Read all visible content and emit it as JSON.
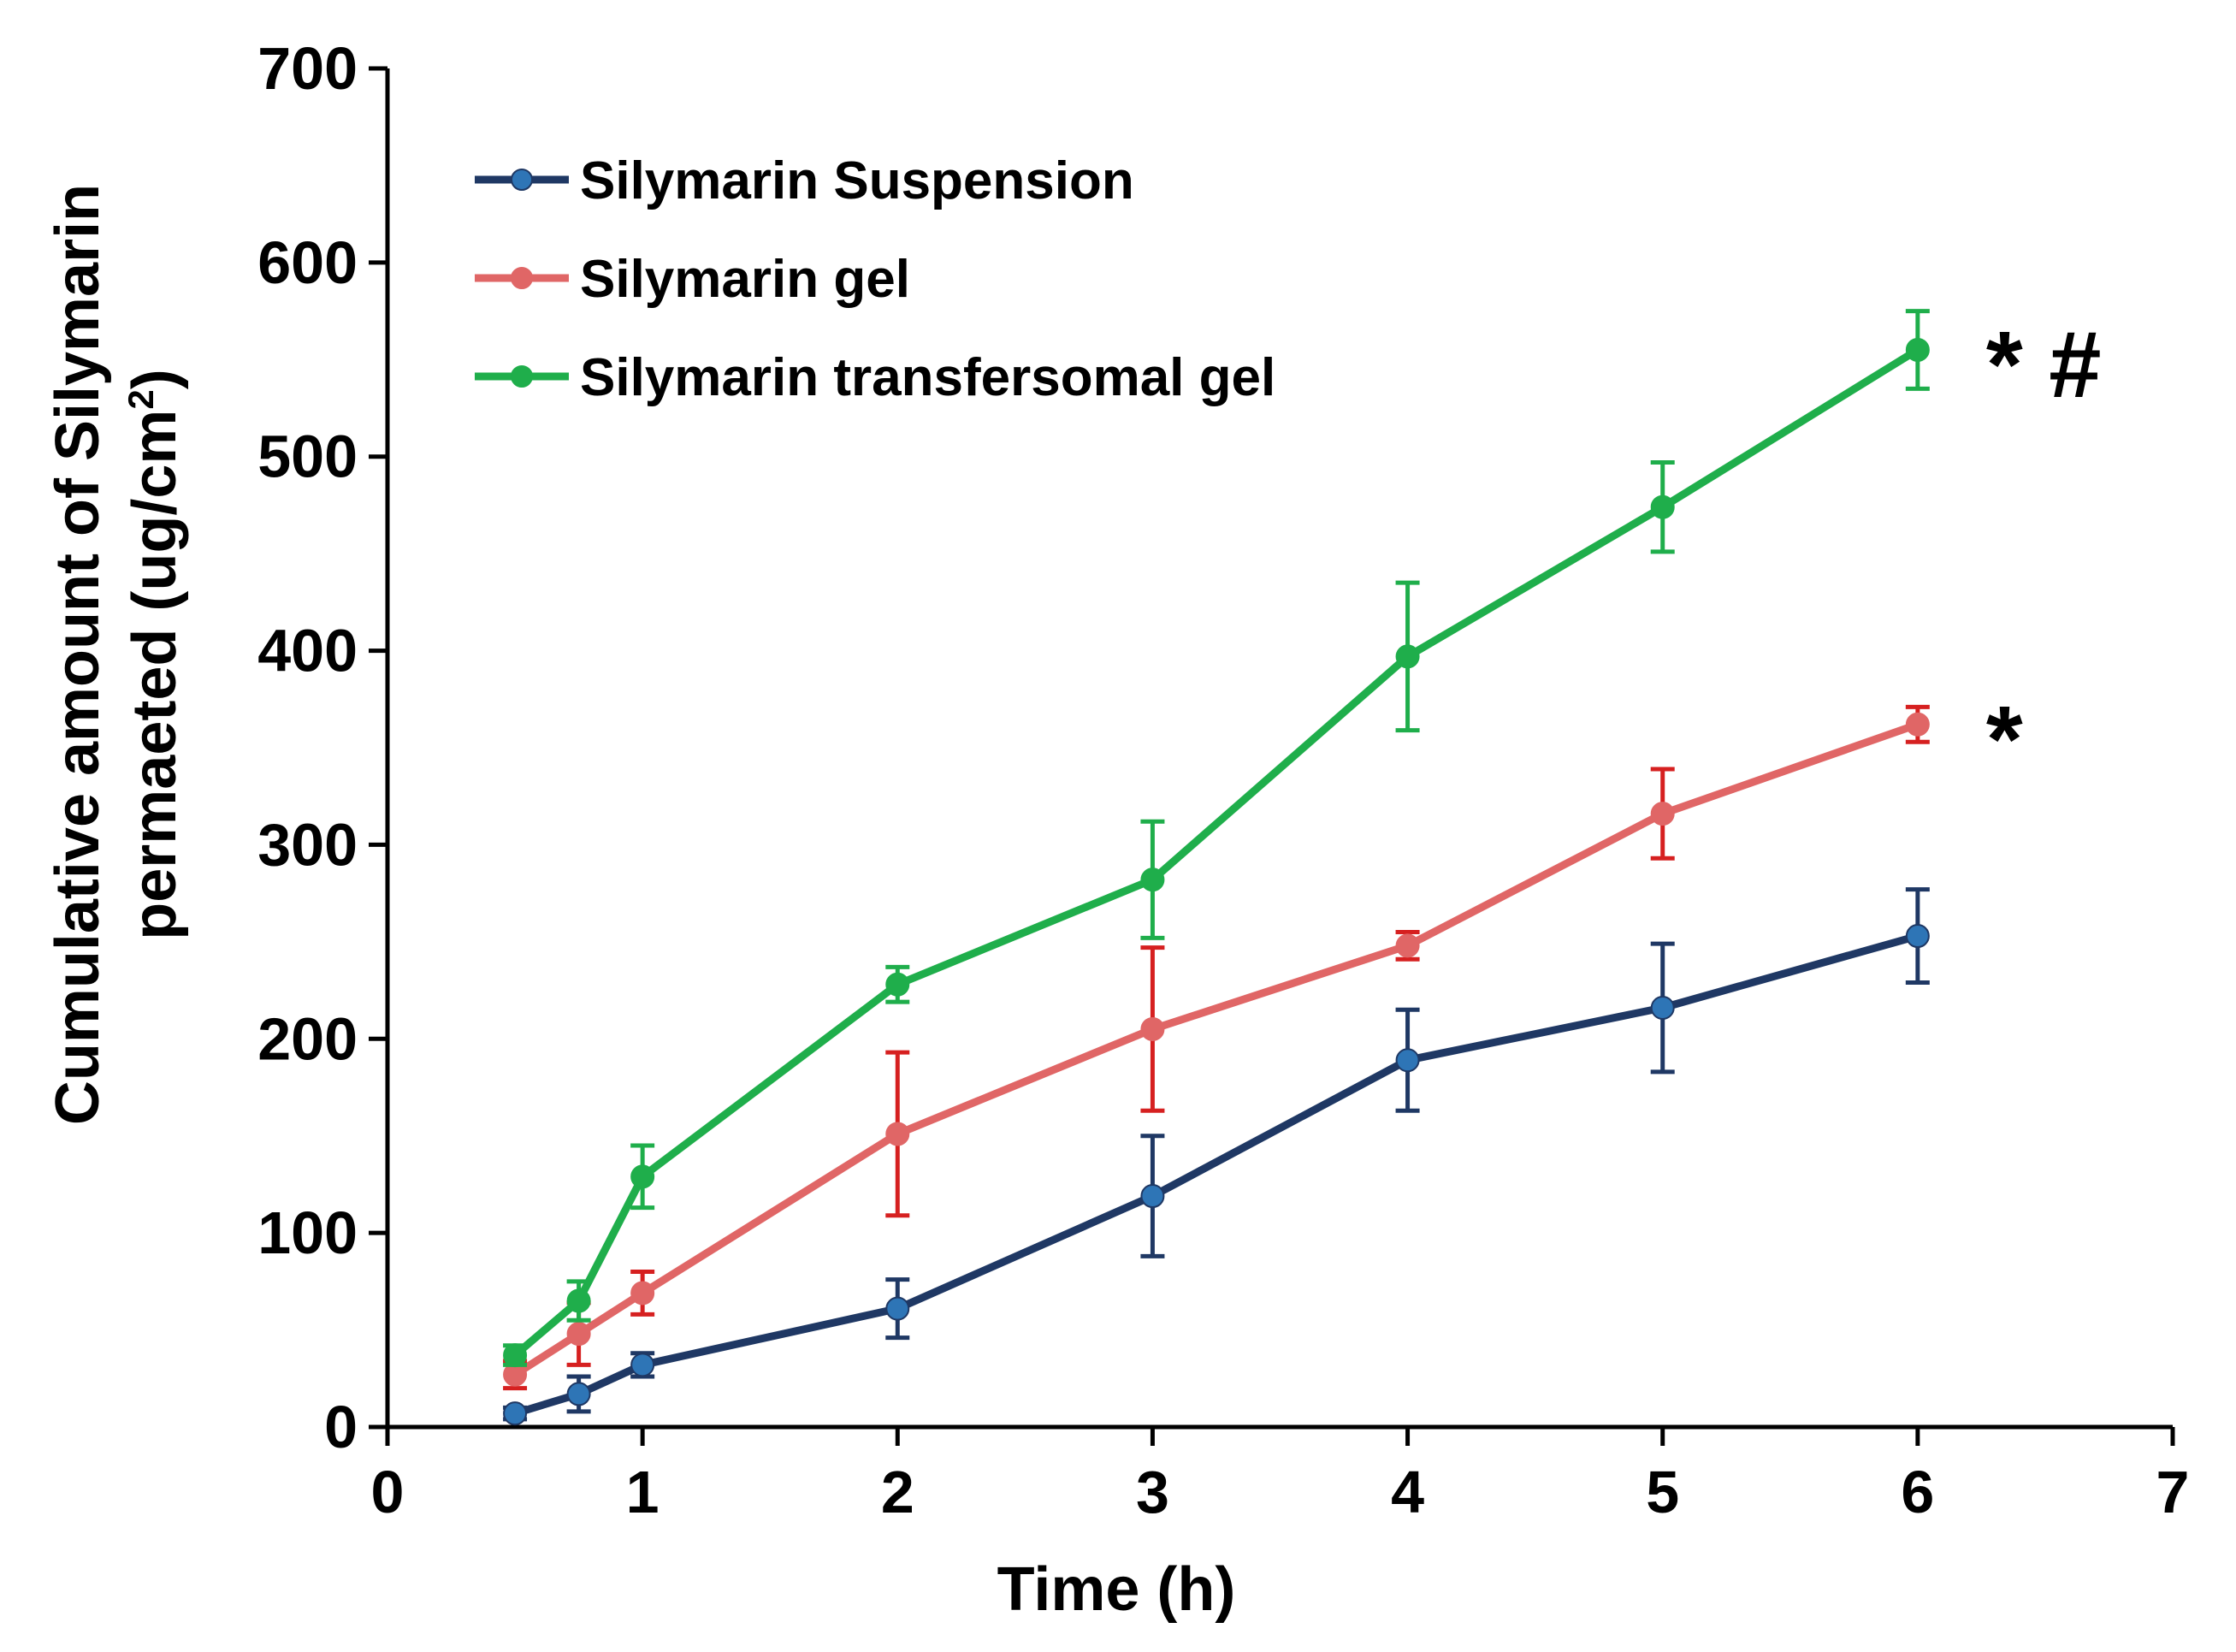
{
  "chart_data": {
    "type": "line",
    "title": "",
    "xlabel": "Time (h)",
    "ylabel_line1": "Cumulative amount of Silymarin",
    "ylabel_line2": "permaeted (ug/cm",
    "ylabel_sup": "2",
    "ylabel_end": ")",
    "xlim": [
      0,
      7
    ],
    "ylim": [
      0,
      700
    ],
    "xticks": [
      0,
      1,
      2,
      3,
      4,
      5,
      6,
      7
    ],
    "yticks": [
      0,
      100,
      200,
      300,
      400,
      500,
      600,
      700
    ],
    "grid": false,
    "legend_position": "top-left",
    "x": [
      0.5,
      0.75,
      1,
      2,
      3,
      4,
      5,
      6
    ],
    "series": [
      {
        "name": "Silymarin Suspension",
        "color": "#1f3864",
        "marker_color": "#2e75b6",
        "values": [
          7,
          17,
          32,
          61,
          119,
          189,
          216,
          253
        ],
        "errors": [
          3,
          9,
          6,
          15,
          31,
          26,
          33,
          24
        ]
      },
      {
        "name": "Silymarin gel",
        "color": "#e06666",
        "marker_color": "#e06666",
        "error_color": "#d62020",
        "values": [
          27,
          48,
          69,
          151,
          205,
          248,
          316,
          362
        ],
        "errors": [
          7,
          16,
          11,
          42,
          42,
          7,
          23,
          9
        ]
      },
      {
        "name": "Silymarin transfersomal gel",
        "color": "#1fae4b",
        "marker_color": "#1fae4b",
        "values": [
          37,
          65,
          129,
          228,
          282,
          397,
          474,
          555
        ],
        "errors": [
          5,
          10,
          16,
          9,
          30,
          38,
          23,
          20
        ]
      }
    ],
    "annotations": [
      {
        "text": "*",
        "series": "Silymarin gel"
      },
      {
        "text": "* #",
        "series": "Silymarin transfersomal gel"
      }
    ]
  }
}
